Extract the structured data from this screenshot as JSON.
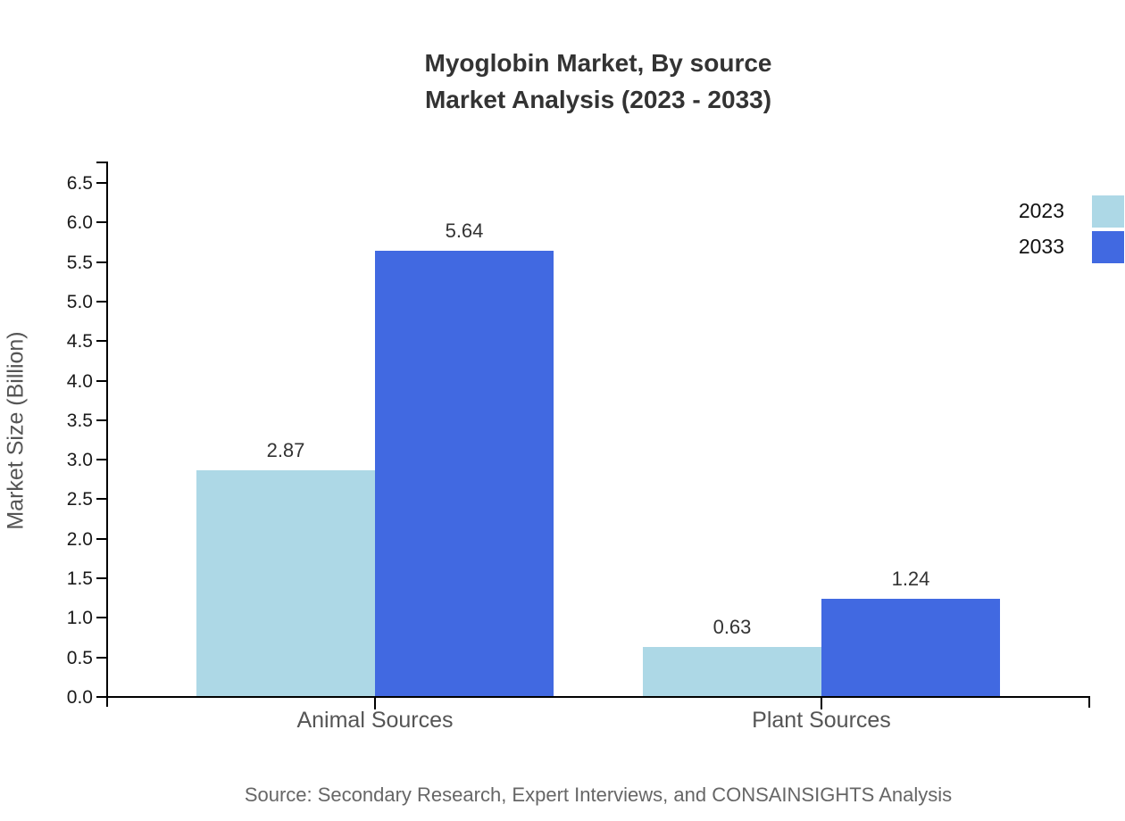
{
  "chart_data": {
    "type": "bar",
    "title_line1": "Myoglobin Market, By source",
    "title_line2": "Market Analysis (2023 - 2033)",
    "ylabel": "Market Size (Billion)",
    "categories": [
      "Animal Sources",
      "Plant Sources"
    ],
    "series": [
      {
        "name": "2023",
        "color": "#ADD8E6",
        "values": [
          2.87,
          0.63
        ]
      },
      {
        "name": "2033",
        "color": "#4169E1",
        "values": [
          5.64,
          1.24
        ]
      }
    ],
    "ylim": [
      0,
      6.5
    ],
    "ytick_step": 0.5,
    "ytick_decimals": 1,
    "value_decimals": 2,
    "grid": false,
    "legend_position": "top-right",
    "source": "Source: Secondary Research, Expert Interviews, and CONSAINSIGHTS Analysis"
  },
  "colors": {
    "title": "#333333",
    "axis": "#000000",
    "tick_label": "#1a1a1a",
    "category_label": "#555555",
    "source_text": "#666666"
  }
}
